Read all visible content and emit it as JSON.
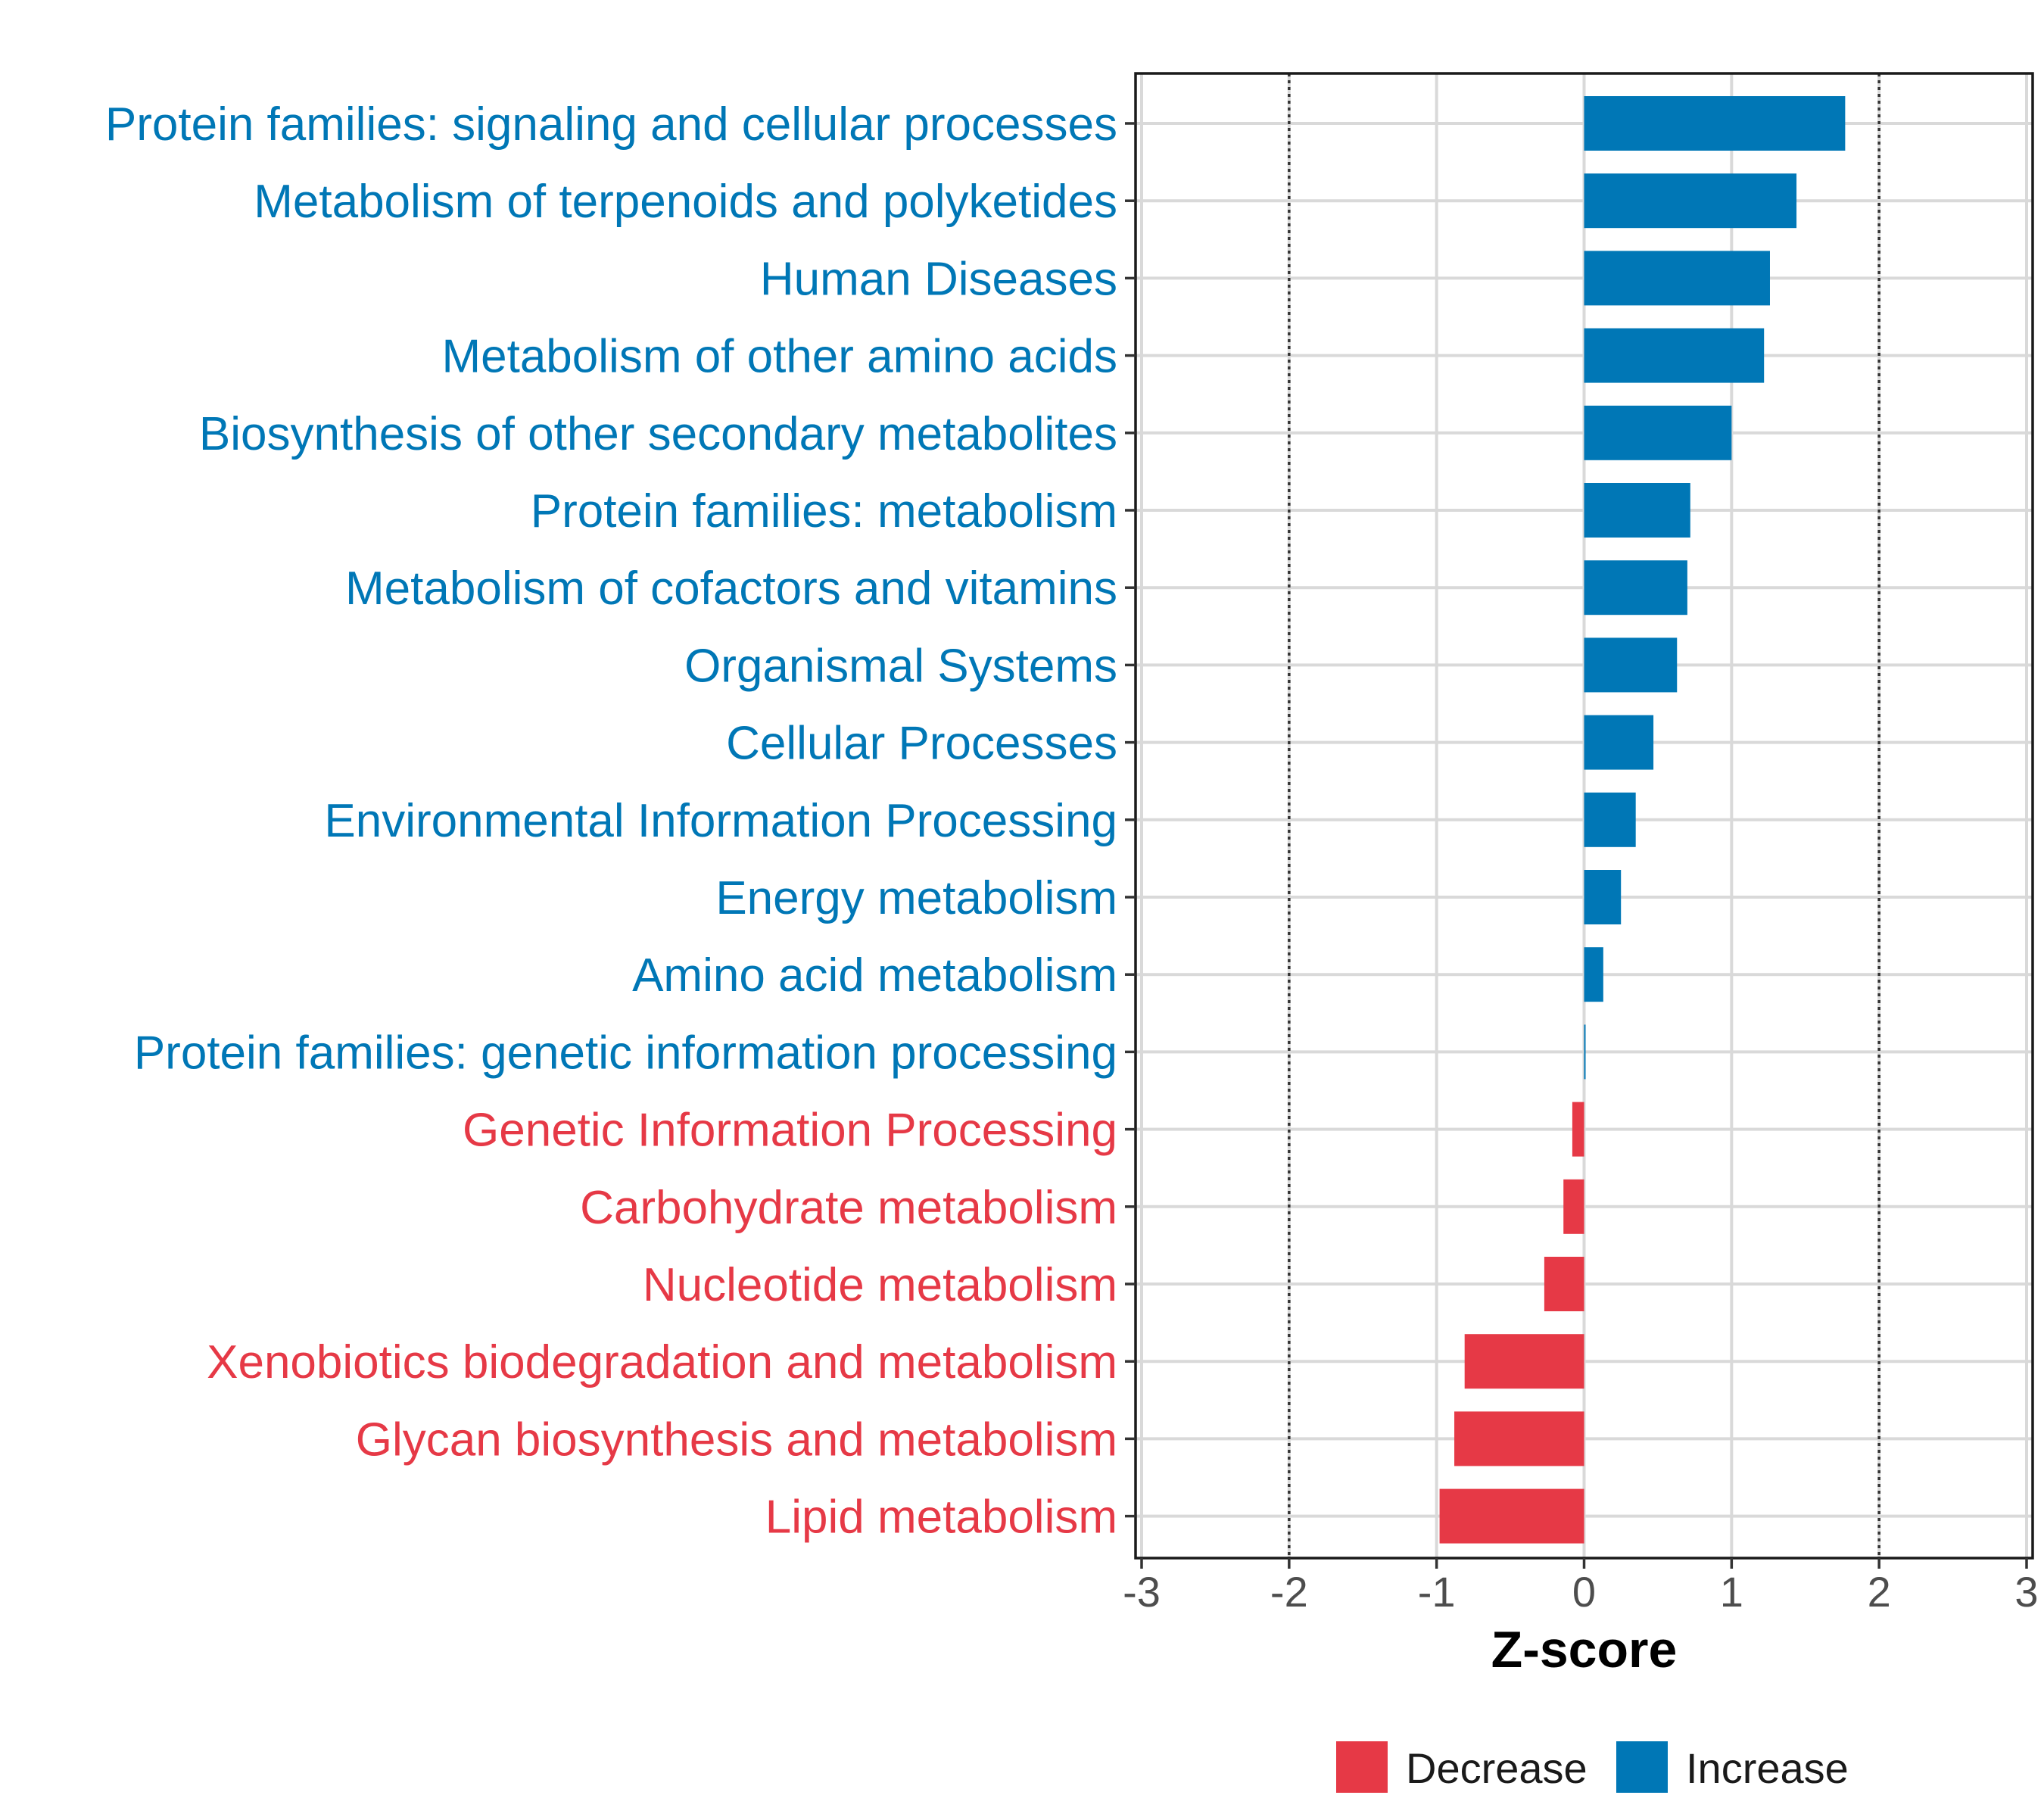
{
  "chart_data": {
    "type": "bar",
    "orientation": "horizontal",
    "title": "",
    "xlabel": "Z-score",
    "ylabel": "",
    "xlim": [
      -3,
      3
    ],
    "xticks": [
      "-3",
      "-2",
      "-1",
      "0",
      "1",
      "2",
      "3"
    ],
    "threshold_lines": [
      -2,
      2
    ],
    "grid": true,
    "colors": {
      "Decrease": "#e63946",
      "Increase": "#0077b6"
    },
    "categories": [
      "Protein families: signaling and cellular processes",
      "Metabolism of terpenoids and polyketides",
      "Human Diseases",
      "Metabolism of other amino acids",
      "Biosynthesis of other secondary metabolites",
      "Protein families: metabolism",
      "Metabolism of cofactors and vitamins",
      "Organismal Systems",
      "Cellular Processes",
      "Environmental Information Processing",
      "Energy metabolism",
      "Amino acid metabolism",
      "Protein families: genetic information processing",
      "Genetic Information Processing",
      "Carbohydrate metabolism",
      "Nucleotide metabolism",
      "Xenobiotics biodegradation and metabolism",
      "Glycan biosynthesis and metabolism",
      "Lipid metabolism"
    ],
    "values": [
      1.77,
      1.44,
      1.26,
      1.22,
      1.0,
      0.72,
      0.7,
      0.63,
      0.47,
      0.35,
      0.25,
      0.13,
      0.01,
      -0.08,
      -0.14,
      -0.27,
      -0.81,
      -0.88,
      -0.98
    ],
    "groups": [
      "Increase",
      "Increase",
      "Increase",
      "Increase",
      "Increase",
      "Increase",
      "Increase",
      "Increase",
      "Increase",
      "Increase",
      "Increase",
      "Increase",
      "Increase",
      "Decrease",
      "Decrease",
      "Decrease",
      "Decrease",
      "Decrease",
      "Decrease"
    ],
    "legend": {
      "position": "bottom",
      "entries": [
        "Decrease",
        "Increase"
      ]
    }
  }
}
